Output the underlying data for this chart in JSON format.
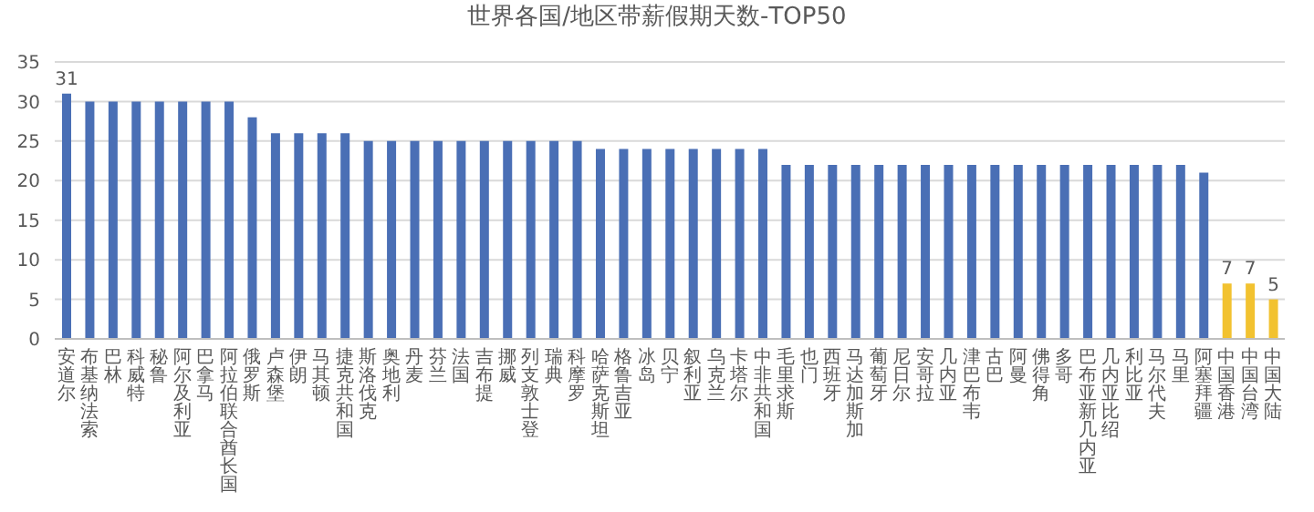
{
  "chart_data": {
    "type": "bar",
    "title": "世界各国/地区带薪假期天数-TOP50",
    "categories": [
      "安道尔",
      "布基纳法索",
      "巴林",
      "科威特",
      "秘鲁",
      "阿尔及利亚",
      "巴拿马",
      "阿拉伯联合酋长国",
      "俄罗斯",
      "卢森堡",
      "伊朗",
      "马其顿",
      "捷克共和国",
      "斯洛伐克",
      "奥地利",
      "丹麦",
      "芬兰",
      "法国",
      "吉布提",
      "挪威",
      "列支敦士登",
      "瑞典",
      "科摩罗",
      "哈萨克斯坦",
      "格鲁吉亚",
      "冰岛",
      "贝宁",
      "叙利亚",
      "乌克兰",
      "卡塔尔",
      "中非共和国",
      "毛里求斯",
      "也门",
      "西班牙",
      "马达加斯加",
      "葡萄牙",
      "尼日尔",
      "安哥拉",
      "几内亚",
      "津巴布韦",
      "古巴",
      "阿曼",
      "佛得角",
      "多哥",
      "巴布亚新几内亚",
      "几内亚比绍",
      "利比亚",
      "马尔代夫",
      "马里",
      "阿塞拜疆",
      "中国香港",
      "中国台湾",
      "中国大陆"
    ],
    "values": [
      31,
      30,
      30,
      30,
      30,
      30,
      30,
      30,
      28,
      26,
      26,
      26,
      26,
      25,
      25,
      25,
      25,
      25,
      25,
      25,
      25,
      25,
      25,
      24,
      24,
      24,
      24,
      24,
      24,
      24,
      24,
      22,
      22,
      22,
      22,
      22,
      22,
      22,
      22,
      22,
      22,
      22,
      22,
      22,
      22,
      22,
      22,
      22,
      22,
      21,
      7,
      7,
      5
    ],
    "value_labels": [
      "31",
      null,
      null,
      null,
      null,
      null,
      null,
      null,
      null,
      null,
      null,
      null,
      null,
      null,
      null,
      null,
      null,
      null,
      null,
      null,
      null,
      null,
      null,
      null,
      null,
      null,
      null,
      null,
      null,
      null,
      null,
      null,
      null,
      null,
      null,
      null,
      null,
      null,
      null,
      null,
      null,
      null,
      null,
      null,
      null,
      null,
      null,
      null,
      null,
      null,
      "7",
      "7",
      "5"
    ],
    "colors": [
      "#4a6fb5",
      "#4a6fb5",
      "#4a6fb5",
      "#4a6fb5",
      "#4a6fb5",
      "#4a6fb5",
      "#4a6fb5",
      "#4a6fb5",
      "#4a6fb5",
      "#4a6fb5",
      "#4a6fb5",
      "#4a6fb5",
      "#4a6fb5",
      "#4a6fb5",
      "#4a6fb5",
      "#4a6fb5",
      "#4a6fb5",
      "#4a6fb5",
      "#4a6fb5",
      "#4a6fb5",
      "#4a6fb5",
      "#4a6fb5",
      "#4a6fb5",
      "#4a6fb5",
      "#4a6fb5",
      "#4a6fb5",
      "#4a6fb5",
      "#4a6fb5",
      "#4a6fb5",
      "#4a6fb5",
      "#4a6fb5",
      "#4a6fb5",
      "#4a6fb5",
      "#4a6fb5",
      "#4a6fb5",
      "#4a6fb5",
      "#4a6fb5",
      "#4a6fb5",
      "#4a6fb5",
      "#4a6fb5",
      "#4a6fb5",
      "#4a6fb5",
      "#4a6fb5",
      "#4a6fb5",
      "#4a6fb5",
      "#4a6fb5",
      "#4a6fb5",
      "#4a6fb5",
      "#4a6fb5",
      "#4a6fb5",
      "#f2c230",
      "#f2c230",
      "#f2c230"
    ],
    "ylim": [
      0,
      35
    ],
    "yticks": [
      0,
      5,
      10,
      15,
      20,
      25,
      30,
      35
    ],
    "grid": "y",
    "legend": false
  }
}
